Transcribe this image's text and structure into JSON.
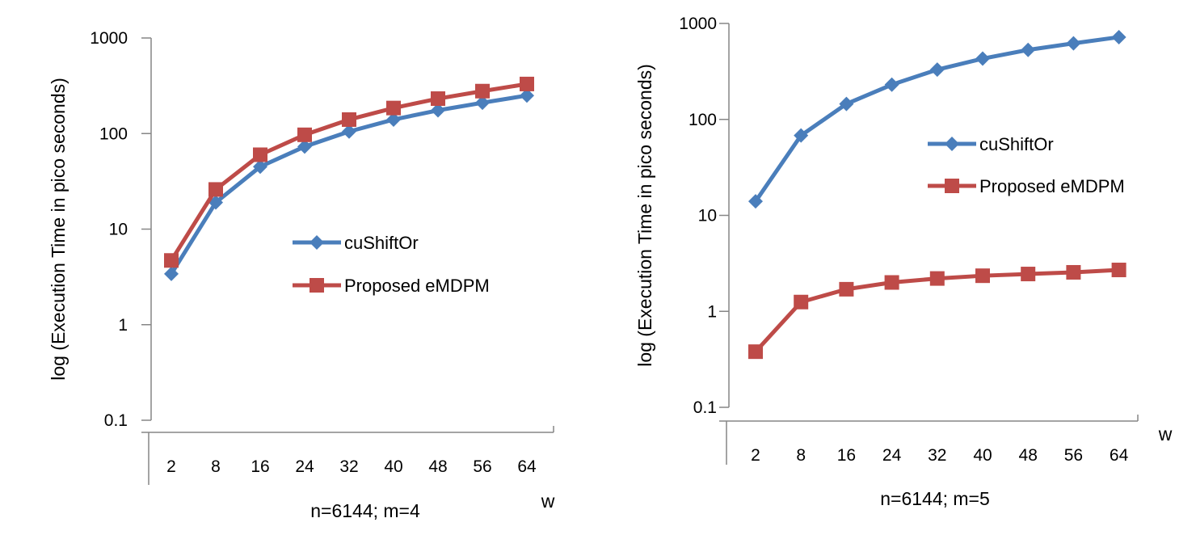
{
  "chart_data": [
    {
      "type": "line",
      "title": "",
      "xlabel": "w",
      "ylabel": "log (Execution Time in pico seconds)",
      "caption": "n=6144;  m=4",
      "yscale": "log",
      "ylim": [
        0.1,
        1000
      ],
      "yticks": [
        "0.1",
        "1",
        "10",
        "100",
        "1000"
      ],
      "categories": [
        "2",
        "8",
        "16",
        "24",
        "32",
        "40",
        "48",
        "56",
        "64"
      ],
      "legend_position": "center-right",
      "series": [
        {
          "name": "cuShiftOr",
          "color": "#4a7ebb",
          "marker": "diamond",
          "values": [
            3.4,
            19,
            45,
            73,
            105,
            140,
            175,
            210,
            250
          ]
        },
        {
          "name": "Proposed eMDPM",
          "color": "#be4b48",
          "marker": "square",
          "values": [
            4.7,
            26,
            60,
            97,
            140,
            185,
            232,
            278,
            330
          ]
        }
      ]
    },
    {
      "type": "line",
      "title": "",
      "xlabel": "w",
      "ylabel": "log (Execution Time in pico seconds)",
      "caption": "n=6144;  m=5",
      "yscale": "log",
      "ylim": [
        0.1,
        1000
      ],
      "yticks": [
        "0.1",
        "1",
        "10",
        "100",
        "1000"
      ],
      "categories": [
        "2",
        "8",
        "16",
        "24",
        "32",
        "40",
        "48",
        "56",
        "64"
      ],
      "legend_position": "center-right",
      "series": [
        {
          "name": "cuShiftOr",
          "color": "#4a7ebb",
          "marker": "diamond",
          "values": [
            14,
            68,
            145,
            230,
            330,
            430,
            530,
            620,
            720
          ]
        },
        {
          "name": "Proposed eMDPM",
          "color": "#be4b48",
          "marker": "square",
          "values": [
            0.38,
            1.25,
            1.7,
            2.0,
            2.2,
            2.35,
            2.45,
            2.55,
            2.7
          ]
        }
      ]
    }
  ]
}
